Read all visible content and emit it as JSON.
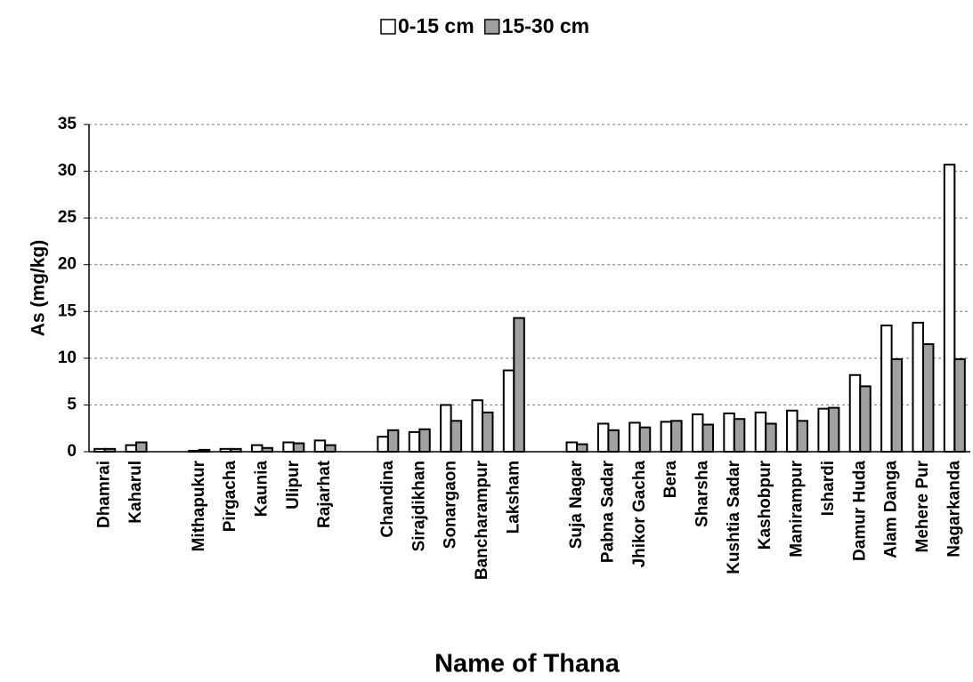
{
  "chart_data": {
    "type": "bar",
    "x_label": "Name of Thana",
    "y_label": "As (mg/kg)",
    "categories": [
      "Dhamrai",
      "Kaharul",
      null,
      "Mithapukur",
      "Pirgacha",
      "Kaunia",
      "Ulipur",
      "Rajarhat",
      null,
      "Chandina",
      "Sirajdikhan",
      "Sonargaon",
      "Bancharampur",
      "Laksham",
      null,
      "Suja Nagar",
      "Pabna Sadar",
      "Jhikor Gacha",
      "Bera",
      "Sharsha",
      "Kushtia Sadar",
      "Kashobpur",
      "Manirampur",
      "Ishardi",
      "Damur Huda",
      "Alam Danga",
      "Mehere Pur",
      "Nagarkanda"
    ],
    "series": [
      {
        "name": "0-15 cm",
        "color": "#ffffff",
        "values": [
          0.3,
          0.7,
          null,
          0.1,
          0.3,
          0.7,
          1.0,
          1.2,
          null,
          1.6,
          2.1,
          5.0,
          5.5,
          8.7,
          null,
          1.0,
          3.0,
          3.1,
          3.2,
          4.0,
          4.1,
          4.2,
          4.4,
          4.6,
          8.2,
          13.5,
          13.8,
          30.7
        ]
      },
      {
        "name": "15-30 cm",
        "color": "#a0a0a0",
        "values": [
          0.3,
          1.0,
          null,
          0.2,
          0.3,
          0.4,
          0.9,
          0.7,
          null,
          2.3,
          2.4,
          3.3,
          4.2,
          14.3,
          null,
          0.8,
          2.3,
          2.6,
          3.3,
          2.9,
          3.5,
          3.0,
          3.3,
          4.7,
          7.0,
          9.9,
          11.5,
          9.9
        ]
      }
    ],
    "ylim": [
      0,
      35
    ],
    "yticks": [
      0,
      5,
      10,
      15,
      20,
      25,
      30,
      35
    ],
    "grid": true,
    "legend": "top"
  }
}
